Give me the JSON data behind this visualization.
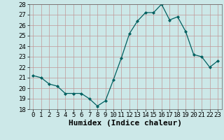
{
  "x": [
    0,
    1,
    2,
    3,
    4,
    5,
    6,
    7,
    8,
    9,
    10,
    11,
    12,
    13,
    14,
    15,
    16,
    17,
    18,
    19,
    20,
    21,
    22,
    23
  ],
  "y": [
    21.2,
    21.0,
    20.4,
    20.2,
    19.5,
    19.5,
    19.5,
    19.0,
    18.3,
    18.8,
    20.8,
    22.9,
    25.2,
    26.4,
    27.2,
    27.2,
    28.0,
    26.5,
    26.8,
    25.4,
    23.2,
    23.0,
    22.0,
    22.6
  ],
  "line_color": "#006060",
  "marker": "D",
  "marker_size": 2,
  "xlabel": "Humidex (Indice chaleur)",
  "xlim": [
    -0.5,
    23.5
  ],
  "ylim": [
    18,
    28
  ],
  "yticks": [
    18,
    19,
    20,
    21,
    22,
    23,
    24,
    25,
    26,
    27,
    28
  ],
  "xticks": [
    0,
    1,
    2,
    3,
    4,
    5,
    6,
    7,
    8,
    9,
    10,
    11,
    12,
    13,
    14,
    15,
    16,
    17,
    18,
    19,
    20,
    21,
    22,
    23
  ],
  "bg_color": "#cce8e8",
  "grid_color": "#c09898",
  "tick_fontsize": 6.5,
  "xlabel_fontsize": 8
}
